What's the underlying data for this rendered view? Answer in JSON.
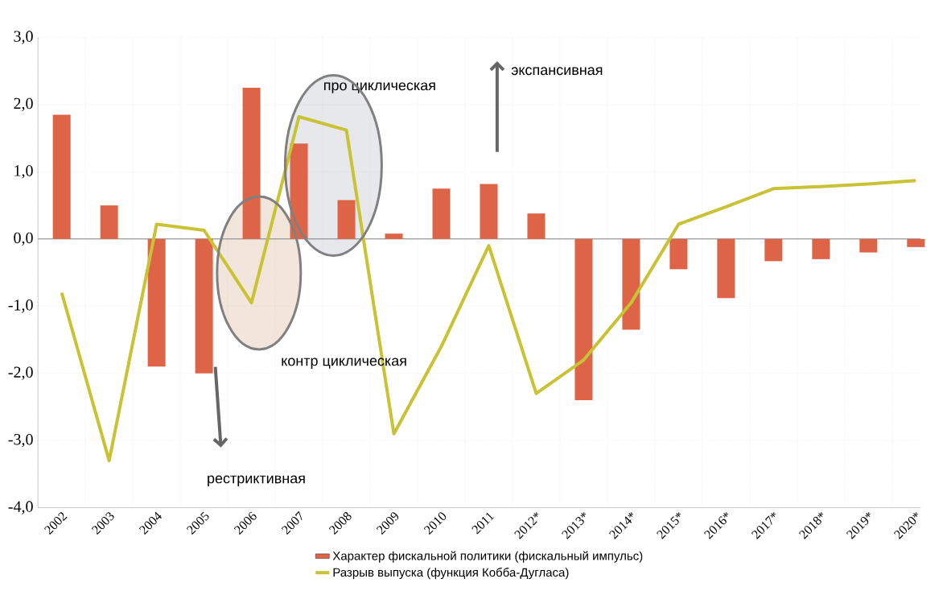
{
  "chart_data": {
    "type": "bar",
    "categories": [
      "2002",
      "2003",
      "2004",
      "2005",
      "2006",
      "2007",
      "2008",
      "2009",
      "2010",
      "2011",
      "2012*",
      "2013*",
      "2014*",
      "2015*",
      "2016*",
      "2017*",
      "2018*",
      "2019*",
      "2020*"
    ],
    "series": [
      {
        "name": "Характер фискальной политики (фискальный импульс)",
        "color": "#dd6447",
        "values": [
          1.85,
          0.5,
          -1.9,
          -2.0,
          2.25,
          1.42,
          0.58,
          0.08,
          0.75,
          0.82,
          0.38,
          -2.4,
          -1.35,
          -0.45,
          -0.88,
          -0.33,
          -0.3,
          -0.2,
          -0.12
        ]
      },
      {
        "name": "Разрыв выпуска (функция Кобба-Дугласа)",
        "type": "line",
        "color": "#c9c235",
        "values": [
          -0.8,
          -3.3,
          0.22,
          0.13,
          -0.95,
          1.82,
          1.62,
          -2.9,
          -1.6,
          -0.1,
          -2.3,
          -1.8,
          -0.95,
          0.22,
          0.48,
          0.75,
          0.78,
          0.82,
          0.87
        ]
      }
    ],
    "ylim": [
      -4,
      3
    ],
    "yticks": [
      {
        "value": -4,
        "label": "-4,0"
      },
      {
        "value": -3,
        "label": "-3,0"
      },
      {
        "value": -2,
        "label": "-2,0"
      },
      {
        "value": -1,
        "label": "-1,0"
      },
      {
        "value": 0,
        "label": "0,0"
      },
      {
        "value": 1,
        "label": "1,0"
      },
      {
        "value": 2,
        "label": "2,0"
      },
      {
        "value": 3,
        "label": "3,0"
      }
    ],
    "annotations": [
      "про циклическая",
      "экспансивная",
      "контр циклическая",
      "рестриктивная"
    ],
    "grid": true,
    "legend": "bottom",
    "marker": "none",
    "line_style": "solid"
  }
}
